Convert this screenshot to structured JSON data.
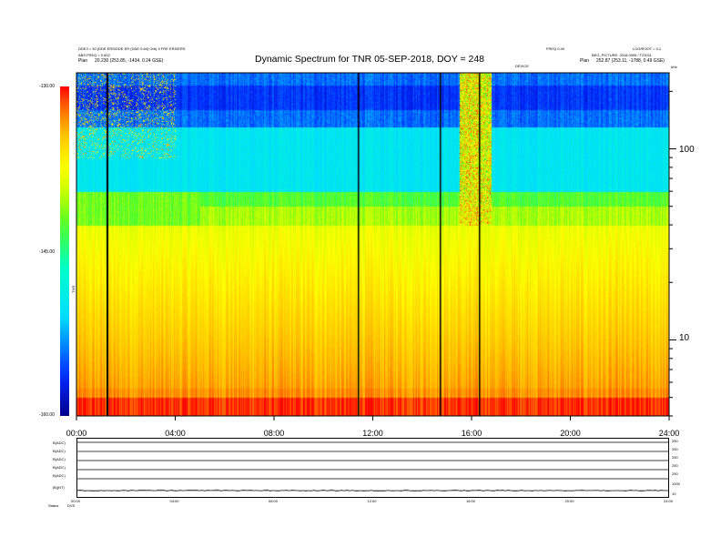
{
  "header": {
    "title": "Dynamic Spectrum for TNR 05-SEP-2018, DOY = 248",
    "meta_left_line1": "DDE3 = 30 (DDE ERS/DDE ER (DDE 0.60) Orb) 3 FRE ERS/ERS",
    "meta_left_line2": "ABS FREQ = 0.602",
    "meta_left_line3_label": "Plan",
    "meta_left_line3_value": "20.230 (253.85, -1434, 0.24 GSE)",
    "meta_right_line1": "LOG/ROOT = 0.1",
    "meta_right_line2": "BEG_PICTURE: 2018.0905 / T23011",
    "meta_right_line3_label": "Plan",
    "meta_right_line3_value": "252.87 (253.11, -1788, 0.49 GSE)",
    "meta_mid_right": "FREQ 0.40",
    "meta_mid_right2": "DEVICE",
    "meta_corner": "kHz"
  },
  "colorbar": {
    "label": "TNR",
    "ticks": [
      "-130.00",
      "-145.00",
      "-160.00"
    ]
  },
  "bottom_panel": {
    "row_labels": [
      "B(ADC)",
      "B(ADC)",
      "B(ADC)",
      "B(ADC)",
      "B(ADC)",
      "|B|(NT)",
      "Status"
    ],
    "right_ticks": [
      "250",
      "250",
      "250",
      "250",
      "250",
      "1000",
      "10"
    ],
    "x_ticks": [
      "00:00",
      "04:00",
      "08:00",
      "12:00",
      "16:00",
      "20:00",
      "24:00"
    ],
    "footer_label": "Status",
    "footer_value": "DVS"
  },
  "chart_data": {
    "type": "heatmap",
    "title": "Dynamic Spectrum for TNR 05-SEP-2018, DOY = 248",
    "xlabel": "",
    "ylabel": "",
    "x_ticks": [
      "00:00",
      "04:00",
      "08:00",
      "12:00",
      "16:00",
      "20:00",
      "24:00"
    ],
    "x_range_hours": [
      0,
      24
    ],
    "y_axis_scale": "log",
    "y_unit": "kHz",
    "y_ticks": [
      "100",
      "10"
    ],
    "y_range_khz": [
      4,
      250
    ],
    "colorscale": "rainbow (blue low, red high)",
    "color_range": [
      -160.0,
      -130.0
    ],
    "color_ticks": [
      "-130.00",
      "-145.00",
      "-160.00"
    ],
    "data_gap_lines_hours": [
      1.2,
      11.4,
      14.7,
      16.3
    ],
    "grid": false,
    "legend": "colorbar-left",
    "colors": {
      "low": "#0000a0",
      "mid_low": "#00ffff",
      "mid": "#80ff00",
      "mid_high": "#ffff00",
      "high": "#ff0000"
    }
  }
}
